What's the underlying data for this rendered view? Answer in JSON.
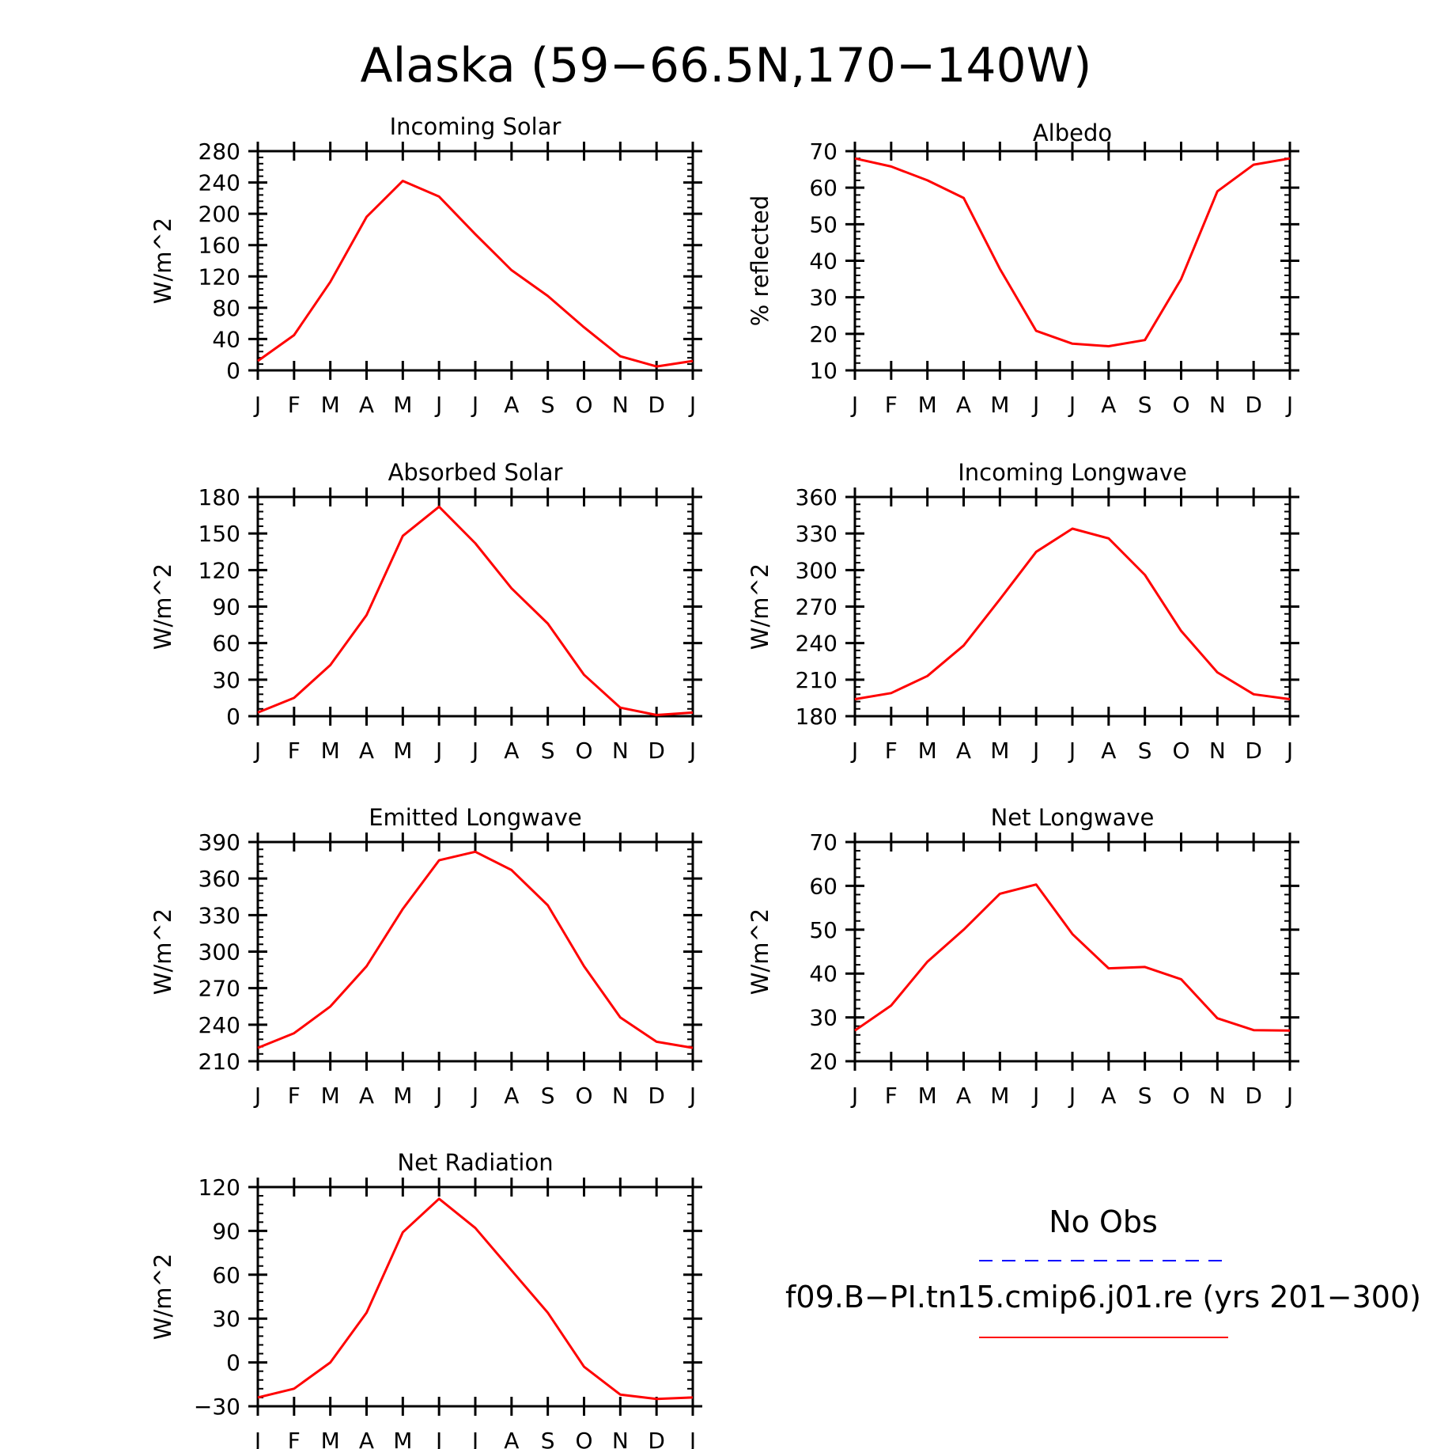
{
  "title": "Alaska (59−66.5N,170−140W)",
  "months": [
    "J",
    "F",
    "M",
    "A",
    "M",
    "J",
    "J",
    "A",
    "S",
    "O",
    "N",
    "D",
    "J"
  ],
  "legend": {
    "obs_label": "No Obs",
    "obs_color": "#0000ff",
    "obs_style": "dashed",
    "model_label": "f09.B−PI.tn15.cmip6.j01.re (yrs 201−300)",
    "model_color": "#ff0000",
    "model_style": "solid"
  },
  "chart_data": [
    {
      "type": "line",
      "title": "Incoming Solar",
      "ylabel": "W/m^2",
      "ylim": [
        0,
        280
      ],
      "yticks": [
        0,
        40,
        80,
        120,
        160,
        200,
        240,
        280
      ],
      "x": [
        "J",
        "F",
        "M",
        "A",
        "M",
        "J",
        "J",
        "A",
        "S",
        "O",
        "N",
        "D",
        "J"
      ],
      "series": [
        {
          "color": "#ff0000",
          "values": [
            12,
            45,
            113,
            196,
            242,
            222,
            174,
            128,
            95,
            55,
            18,
            5,
            12
          ]
        }
      ]
    },
    {
      "type": "line",
      "title": "Albedo",
      "ylabel": "% reflected",
      "ylim": [
        10,
        70
      ],
      "yticks": [
        10,
        20,
        30,
        40,
        50,
        60,
        70
      ],
      "x": [
        "J",
        "F",
        "M",
        "A",
        "M",
        "J",
        "J",
        "A",
        "S",
        "O",
        "N",
        "D",
        "J"
      ],
      "series": [
        {
          "color": "#ff0000",
          "values": [
            68,
            65.8,
            62,
            57.2,
            37.8,
            20.8,
            17.3,
            16.6,
            18.3,
            35,
            59,
            66.3,
            68
          ]
        }
      ]
    },
    {
      "type": "line",
      "title": "Absorbed Solar",
      "ylabel": "W/m^2",
      "ylim": [
        0,
        180
      ],
      "yticks": [
        0,
        30,
        60,
        90,
        120,
        150,
        180
      ],
      "x": [
        "J",
        "F",
        "M",
        "A",
        "M",
        "J",
        "J",
        "A",
        "S",
        "O",
        "N",
        "D",
        "J"
      ],
      "series": [
        {
          "color": "#ff0000",
          "values": [
            3,
            15,
            42,
            83,
            148,
            172,
            142,
            105,
            76,
            34,
            7,
            1,
            3
          ]
        }
      ]
    },
    {
      "type": "line",
      "title": "Incoming Longwave",
      "ylabel": "W/m^2",
      "ylim": [
        180,
        360
      ],
      "yticks": [
        180,
        210,
        240,
        270,
        300,
        330,
        360
      ],
      "x": [
        "J",
        "F",
        "M",
        "A",
        "M",
        "J",
        "J",
        "A",
        "S",
        "O",
        "N",
        "D",
        "J"
      ],
      "series": [
        {
          "color": "#ff0000",
          "values": [
            194,
            199,
            213,
            238,
            276,
            315,
            334,
            326,
            296,
            250,
            216,
            198,
            194
          ]
        }
      ]
    },
    {
      "type": "line",
      "title": "Emitted Longwave",
      "ylabel": "W/m^2",
      "ylim": [
        210,
        390
      ],
      "yticks": [
        210,
        240,
        270,
        300,
        330,
        360,
        390
      ],
      "x": [
        "J",
        "F",
        "M",
        "A",
        "M",
        "J",
        "J",
        "A",
        "S",
        "O",
        "N",
        "D",
        "J"
      ],
      "series": [
        {
          "color": "#ff0000",
          "values": [
            221,
            233,
            255,
            288,
            335,
            375,
            382,
            367,
            338,
            288,
            246,
            226,
            221
          ]
        }
      ]
    },
    {
      "type": "line",
      "title": "Net Longwave",
      "ylabel": "W/m^2",
      "ylim": [
        20,
        70
      ],
      "yticks": [
        20,
        30,
        40,
        50,
        60,
        70
      ],
      "x": [
        "J",
        "F",
        "M",
        "A",
        "M",
        "J",
        "J",
        "A",
        "S",
        "O",
        "N",
        "D",
        "J"
      ],
      "series": [
        {
          "color": "#ff0000",
          "values": [
            27,
            32.7,
            42.7,
            50,
            58.2,
            60.3,
            49,
            41.2,
            41.5,
            38.7,
            29.8,
            27.1,
            27
          ]
        }
      ]
    },
    {
      "type": "line",
      "title": "Net Radiation",
      "ylabel": "W/m^2",
      "ylim": [
        -30,
        120
      ],
      "yticks": [
        -30,
        0,
        30,
        60,
        90,
        120
      ],
      "x": [
        "J",
        "F",
        "M",
        "A",
        "M",
        "J",
        "J",
        "A",
        "S",
        "O",
        "N",
        "D",
        "J"
      ],
      "series": [
        {
          "color": "#ff0000",
          "values": [
            -24,
            -18,
            0,
            34,
            89,
            112,
            92,
            63,
            34,
            -3,
            -22,
            -25,
            -24
          ]
        }
      ]
    }
  ]
}
